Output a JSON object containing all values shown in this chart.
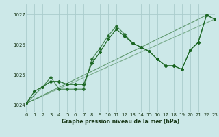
{
  "title": "Graphe pression niveau de la mer (hPa)",
  "bg_color": "#cce8e8",
  "grid_color": "#aacccc",
  "line_color": "#1a6622",
  "xlim": [
    0,
    23
  ],
  "ylim": [
    1023.75,
    1027.35
  ],
  "yticks": [
    1024,
    1025,
    1026,
    1027
  ],
  "xticks": [
    0,
    1,
    2,
    3,
    4,
    5,
    6,
    7,
    8,
    9,
    10,
    11,
    12,
    13,
    14,
    15,
    16,
    17,
    18,
    19,
    20,
    21,
    22,
    23
  ],
  "s1_x": [
    0,
    1,
    2,
    3,
    4,
    5,
    6,
    7,
    8,
    9,
    10,
    11,
    12,
    13,
    14,
    15,
    16,
    17,
    18,
    19,
    20,
    21,
    22,
    23
  ],
  "s1_y": [
    1024.05,
    1024.45,
    1024.6,
    1024.78,
    1024.78,
    1024.68,
    1024.68,
    1024.68,
    1025.38,
    1025.75,
    1026.18,
    1026.52,
    1026.28,
    1026.05,
    1025.92,
    1025.78,
    1025.52,
    1025.3,
    1025.3,
    1025.18,
    1025.82,
    1026.08,
    1026.98,
    1026.85
  ],
  "s2_x": [
    0,
    2,
    3,
    4,
    5,
    6,
    7,
    8,
    9,
    10,
    11,
    12,
    13,
    14,
    15,
    16,
    17,
    18,
    19,
    20,
    21,
    22,
    23
  ],
  "s2_y": [
    1024.05,
    1024.6,
    1024.92,
    1024.52,
    1024.52,
    1024.52,
    1024.52,
    1025.52,
    1025.88,
    1026.3,
    1026.62,
    1026.35,
    1026.05,
    1025.92,
    1025.78,
    1025.52,
    1025.3,
    1025.3,
    1025.18,
    1025.82,
    1026.08,
    1026.98,
    1026.85
  ],
  "trend1_x": [
    0,
    22
  ],
  "trend1_y": [
    1024.05,
    1026.98
  ],
  "trend2_x": [
    0,
    23
  ],
  "trend2_y": [
    1024.05,
    1026.85
  ]
}
